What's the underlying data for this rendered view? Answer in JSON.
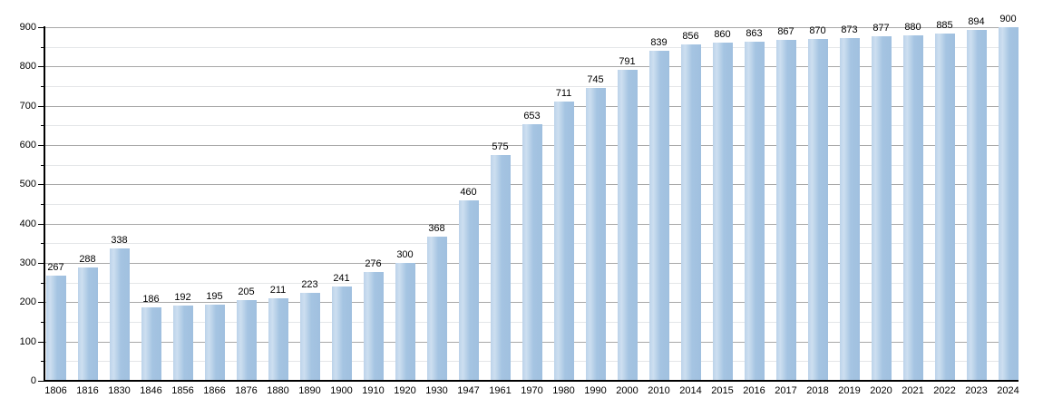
{
  "chart_data": {
    "type": "bar",
    "categories": [
      "1806",
      "1816",
      "1830",
      "1846",
      "1856",
      "1866",
      "1876",
      "1880",
      "1890",
      "1900",
      "1910",
      "1920",
      "1930",
      "1947",
      "1961",
      "1970",
      "1980",
      "1990",
      "2000",
      "2010",
      "2014",
      "2015",
      "2016",
      "2017",
      "2018",
      "2019",
      "2020",
      "2021",
      "2022",
      "2023",
      "2024"
    ],
    "values": [
      267,
      288,
      338,
      186,
      192,
      195,
      205,
      211,
      223,
      241,
      276,
      300,
      368,
      460,
      575,
      653,
      711,
      745,
      791,
      839,
      856,
      860,
      863,
      867,
      870,
      873,
      877,
      880,
      885,
      894,
      900
    ],
    "value_labels": [
      "267",
      "288",
      "338",
      "186",
      "192",
      "195",
      "205",
      "211",
      "223",
      "241",
      "276",
      "300",
      "368",
      "460",
      "575",
      "653",
      "711",
      "745",
      "791",
      "839",
      "856",
      "860",
      "863",
      "867",
      "870",
      "873",
      "877",
      "880",
      "885",
      "894",
      "900"
    ],
    "y_tick_labels": [
      "0",
      "100",
      "200",
      "300",
      "400",
      "500",
      "600",
      "700",
      "800",
      "900"
    ],
    "xlabel": "",
    "ylabel": "",
    "ylim": [
      0,
      900
    ],
    "y_major_step": 100,
    "y_minor_step": 50,
    "grid": true,
    "legend_position": "none",
    "colors": {
      "bar_main": "#a5c4e2",
      "bar_main_dark": "#a0c0df",
      "bar_highlight": "#cddff0",
      "bar_highlight_edge": "#bcd3ea",
      "major_grid": "#a8a8a8",
      "minor_grid": "#e4e6e8",
      "axis": "#000000",
      "text": "#000000",
      "background": "#ffffff"
    }
  }
}
